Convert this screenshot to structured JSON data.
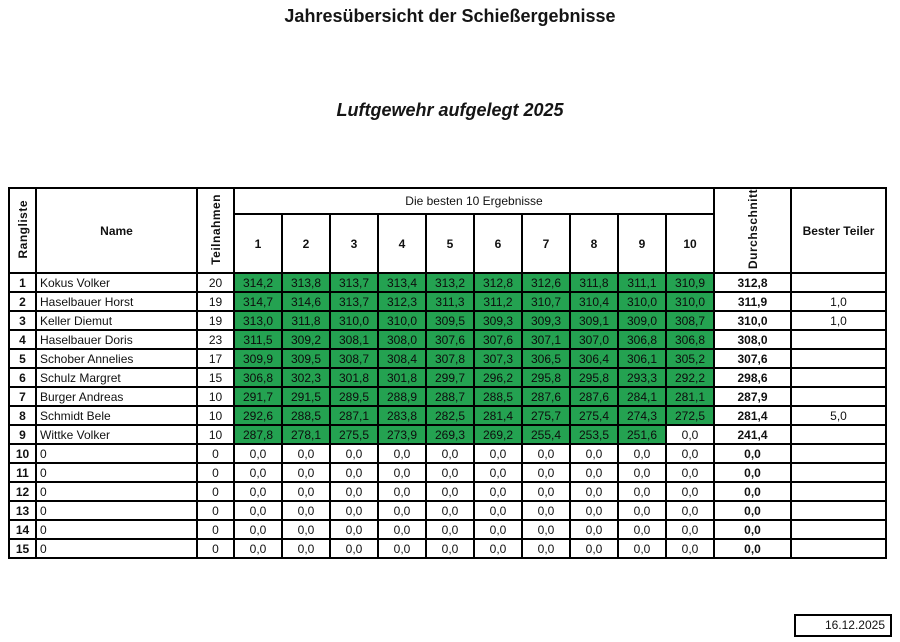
{
  "page": {
    "title": "Jahresübersicht der Schießergebnisse",
    "subtitle": "Luftgewehr aufgelegt 2025",
    "date": "16.12.2025"
  },
  "colors": {
    "score_green": "#24A251"
  },
  "table": {
    "headers": {
      "rank": "Rangliste",
      "name": "Name",
      "participations": "Teilnahmen",
      "best_group": "Die besten 10 Ergebnisse",
      "result_cols": [
        "1",
        "2",
        "3",
        "4",
        "5",
        "6",
        "7",
        "8",
        "9",
        "10"
      ],
      "average": "Durchschnitt",
      "best_teiler": "Bester Teiler"
    },
    "rows": [
      {
        "rank": "1",
        "name": "Kokus Volker",
        "teilnahmen": "20",
        "scores": [
          "314,2",
          "313,8",
          "313,7",
          "313,4",
          "313,2",
          "312,8",
          "312,6",
          "311,8",
          "311,1",
          "310,9"
        ],
        "avg": "312,8",
        "teiler": ""
      },
      {
        "rank": "2",
        "name": "Haselbauer Horst",
        "teilnahmen": "19",
        "scores": [
          "314,7",
          "314,6",
          "313,7",
          "312,3",
          "311,3",
          "311,2",
          "310,7",
          "310,4",
          "310,0",
          "310,0"
        ],
        "avg": "311,9",
        "teiler": "1,0"
      },
      {
        "rank": "3",
        "name": "Keller Diemut",
        "teilnahmen": "19",
        "scores": [
          "313,0",
          "311,8",
          "310,0",
          "310,0",
          "309,5",
          "309,3",
          "309,3",
          "309,1",
          "309,0",
          "308,7"
        ],
        "avg": "310,0",
        "teiler": "1,0"
      },
      {
        "rank": "4",
        "name": "Haselbauer Doris",
        "teilnahmen": "23",
        "scores": [
          "311,5",
          "309,2",
          "308,1",
          "308,0",
          "307,6",
          "307,6",
          "307,1",
          "307,0",
          "306,8",
          "306,8"
        ],
        "avg": "308,0",
        "teiler": ""
      },
      {
        "rank": "5",
        "name": "Schober Annelies",
        "teilnahmen": "17",
        "scores": [
          "309,9",
          "309,5",
          "308,7",
          "308,4",
          "307,8",
          "307,3",
          "306,5",
          "306,4",
          "306,1",
          "305,2"
        ],
        "avg": "307,6",
        "teiler": ""
      },
      {
        "rank": "6",
        "name": "Schulz Margret",
        "teilnahmen": "15",
        "scores": [
          "306,8",
          "302,3",
          "301,8",
          "301,8",
          "299,7",
          "296,2",
          "295,8",
          "295,8",
          "293,3",
          "292,2"
        ],
        "avg": "298,6",
        "teiler": ""
      },
      {
        "rank": "7",
        "name": "Burger Andreas",
        "teilnahmen": "10",
        "scores": [
          "291,7",
          "291,5",
          "289,5",
          "288,9",
          "288,7",
          "288,5",
          "287,6",
          "287,6",
          "284,1",
          "281,1"
        ],
        "avg": "287,9",
        "teiler": ""
      },
      {
        "rank": "8",
        "name": "Schmidt Bele",
        "teilnahmen": "10",
        "scores": [
          "292,6",
          "288,5",
          "287,1",
          "283,8",
          "282,5",
          "281,4",
          "275,7",
          "275,4",
          "274,3",
          "272,5"
        ],
        "avg": "281,4",
        "teiler": "5,0"
      },
      {
        "rank": "9",
        "name": "Wittke Volker",
        "teilnahmen": "10",
        "scores": [
          "287,8",
          "278,1",
          "275,5",
          "273,9",
          "269,3",
          "269,2",
          "255,4",
          "253,5",
          "251,6",
          "0,0"
        ],
        "avg": "241,4",
        "teiler": ""
      },
      {
        "rank": "10",
        "name": "0",
        "teilnahmen": "0",
        "scores": [
          "0,0",
          "0,0",
          "0,0",
          "0,0",
          "0,0",
          "0,0",
          "0,0",
          "0,0",
          "0,0",
          "0,0"
        ],
        "avg": "0,0",
        "teiler": ""
      },
      {
        "rank": "11",
        "name": "0",
        "teilnahmen": "0",
        "scores": [
          "0,0",
          "0,0",
          "0,0",
          "0,0",
          "0,0",
          "0,0",
          "0,0",
          "0,0",
          "0,0",
          "0,0"
        ],
        "avg": "0,0",
        "teiler": ""
      },
      {
        "rank": "12",
        "name": "0",
        "teilnahmen": "0",
        "scores": [
          "0,0",
          "0,0",
          "0,0",
          "0,0",
          "0,0",
          "0,0",
          "0,0",
          "0,0",
          "0,0",
          "0,0"
        ],
        "avg": "0,0",
        "teiler": ""
      },
      {
        "rank": "13",
        "name": "0",
        "teilnahmen": "0",
        "scores": [
          "0,0",
          "0,0",
          "0,0",
          "0,0",
          "0,0",
          "0,0",
          "0,0",
          "0,0",
          "0,0",
          "0,0"
        ],
        "avg": "0,0",
        "teiler": ""
      },
      {
        "rank": "14",
        "name": "0",
        "teilnahmen": "0",
        "scores": [
          "0,0",
          "0,0",
          "0,0",
          "0,0",
          "0,0",
          "0,0",
          "0,0",
          "0,0",
          "0,0",
          "0,0"
        ],
        "avg": "0,0",
        "teiler": ""
      },
      {
        "rank": "15",
        "name": "0",
        "teilnahmen": "0",
        "scores": [
          "0,0",
          "0,0",
          "0,0",
          "0,0",
          "0,0",
          "0,0",
          "0,0",
          "0,0",
          "0,0",
          "0,0"
        ],
        "avg": "0,0",
        "teiler": ""
      }
    ]
  }
}
